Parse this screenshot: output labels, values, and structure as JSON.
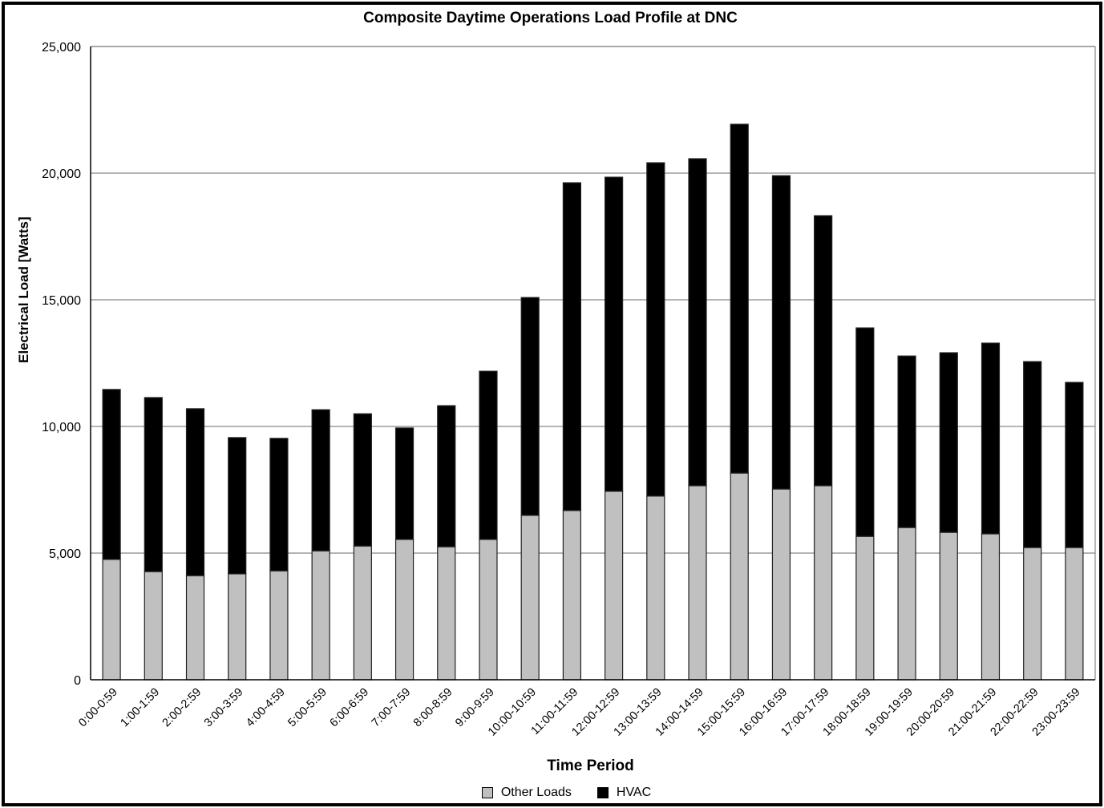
{
  "chart_data": {
    "type": "bar",
    "stacked": true,
    "title": "Composite Daytime Operations Load Profile at DNC",
    "xlabel": "Time Period",
    "ylabel": "Electrical Load [Watts]",
    "ylim": [
      0,
      25000
    ],
    "yticks": [
      0,
      5000,
      10000,
      15000,
      20000,
      25000
    ],
    "ytick_labels": [
      "0",
      "5,000",
      "10,000",
      "15,000",
      "20,000",
      "25,000"
    ],
    "grid": true,
    "legend_position": "bottom",
    "categories": [
      "0:00-0:59",
      "1:00-1:59",
      "2:00-2:59",
      "3:00-3:59",
      "4:00-4:59",
      "5:00-5:59",
      "6:00-6:59",
      "7:00-7:59",
      "8:00-8:59",
      "9:00-9:59",
      "10:00-10:59",
      "11:00-11:59",
      "12:00-12:59",
      "13:00-13:59",
      "14:00-14:59",
      "15:00-15:59",
      "16:00-16:59",
      "17:00-17:59",
      "18:00-18:59",
      "19:00-19:59",
      "20:00-20:59",
      "21:00-21:59",
      "22:00-22:59",
      "23:00-23:59"
    ],
    "series": [
      {
        "name": "Other Loads",
        "color": "#c0c0c0",
        "values": [
          4750,
          4270,
          4110,
          4180,
          4300,
          5090,
          5280,
          5540,
          5250,
          5540,
          6490,
          6680,
          7440,
          7250,
          7660,
          8160,
          7530,
          7660,
          5660,
          6010,
          5820,
          5760,
          5220,
          5220
        ]
      },
      {
        "name": "HVAC",
        "color": "#000000",
        "values": [
          6710,
          6870,
          6590,
          5380,
          5230,
          5570,
          5220,
          4400,
          5570,
          6640,
          8600,
          12940,
          12400,
          13160,
          12910,
          13770,
          12370,
          10660,
          8230,
          6770,
          7090,
          7530,
          7340,
          6520
        ]
      }
    ],
    "totals": [
      11460,
      11140,
      10700,
      9560,
      9530,
      10660,
      10500,
      9940,
      10820,
      12180,
      15090,
      19620,
      19840,
      20410,
      20570,
      21930,
      19900,
      18320,
      13890,
      12780,
      12910,
      13290,
      12560,
      11740
    ]
  }
}
